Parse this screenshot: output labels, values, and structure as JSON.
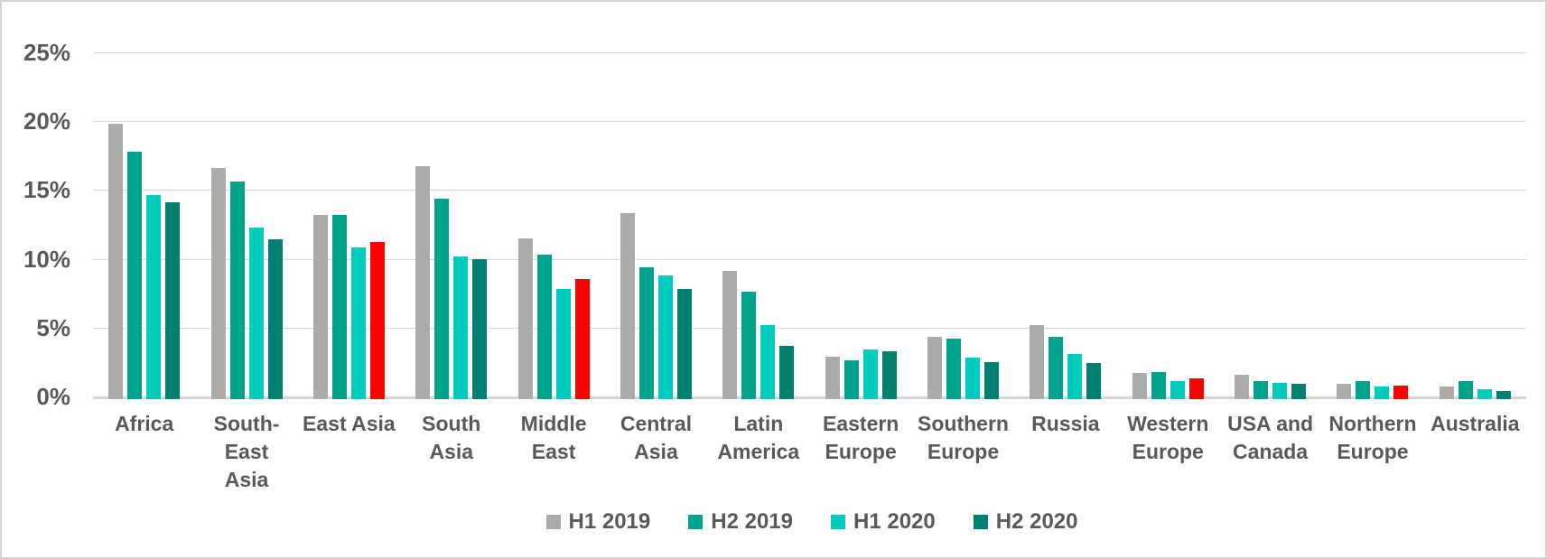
{
  "chart_data": {
    "type": "bar",
    "title": "",
    "ylim": [
      0,
      25
    ],
    "grid": true,
    "legend_position": "bottom",
    "yticks": [
      {
        "value": 25,
        "label": "25%"
      },
      {
        "value": 20,
        "label": "20%"
      },
      {
        "value": 15,
        "label": "15%"
      },
      {
        "value": 10,
        "label": "10%"
      },
      {
        "value": 5,
        "label": "5%"
      },
      {
        "value": 0,
        "label": "0%"
      }
    ],
    "categories": [
      "Africa",
      "South-East Asia",
      "East Asia",
      "South Asia",
      "Middle East",
      "Central Asia",
      "Latin America",
      "Eastern Europe",
      "Southern Europe",
      "Russia",
      "Western Europe",
      "USA and Canada",
      "Northern Europe",
      "Australia"
    ],
    "x_tick_labels": [
      "Africa",
      "South-East\nAsia",
      "East Asia",
      "South Asia",
      "Middle\nEast",
      "Central\nAsia",
      "Latin\nAmerica",
      "Eastern\nEurope",
      "Southern\nEurope",
      "Russia",
      "Western\nEurope",
      "USA and\nCanada",
      "Northern\nEurope",
      "Australia"
    ],
    "series": [
      {
        "name": "H1 2019",
        "color": "#ababab",
        "pattern": "stipple",
        "values": [
          20.0,
          16.8,
          13.4,
          16.9,
          11.7,
          13.5,
          9.3,
          3.1,
          4.5,
          5.4,
          1.9,
          1.8,
          1.1,
          0.9
        ]
      },
      {
        "name": "H2 2019",
        "color": "#00a38c",
        "pattern": "solid",
        "values": [
          18.0,
          15.8,
          13.4,
          14.6,
          10.5,
          9.6,
          7.8,
          2.8,
          4.4,
          4.5,
          2.0,
          1.3,
          1.3,
          1.3
        ]
      },
      {
        "name": "H1 2020",
        "color": "#00ccbd",
        "pattern": "solid",
        "values": [
          14.8,
          12.5,
          11.0,
          10.4,
          8.0,
          9.0,
          5.4,
          3.6,
          3.0,
          3.3,
          1.3,
          1.2,
          0.9,
          0.7
        ]
      },
      {
        "name": "H2 2020",
        "color": "#00806e",
        "pattern": "solid",
        "values": [
          14.3,
          11.6,
          11.4,
          10.2,
          8.7,
          8.0,
          3.9,
          3.5,
          2.7,
          2.6,
          1.5,
          1.1,
          1.0,
          0.6
        ]
      }
    ],
    "highlight_color": "#ff0000",
    "highlighted_bars": [
      {
        "category": "East Asia",
        "series": "H2 2020"
      },
      {
        "category": "Middle East",
        "series": "H2 2020"
      },
      {
        "category": "Western Europe",
        "series": "H2 2020"
      },
      {
        "category": "Northern Europe",
        "series": "H2 2020"
      }
    ],
    "colors": {
      "text": "#595959",
      "gridline": "#d9d9d9",
      "frame_border": "#d4d4d4",
      "background": "#ffffff"
    }
  }
}
